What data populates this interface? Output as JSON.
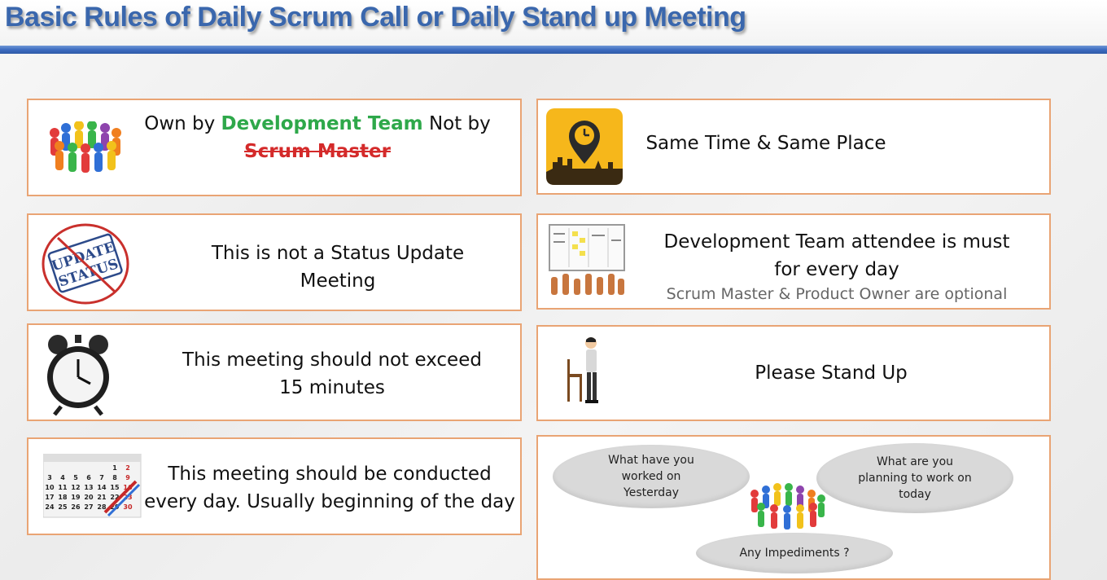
{
  "title": "Basic Rules of Daily Scrum Call or Daily Stand up Meeting",
  "cards": {
    "owner": {
      "prefix": "Own by ",
      "team": "Development Team",
      "suffix": " Not by",
      "struck": "Scrum Master"
    },
    "status": {
      "line1": "This is not a Status Update",
      "line2": "Meeting",
      "stamp_line1": "UPDATE",
      "stamp_line2": "STATUS"
    },
    "timebox": {
      "line1": "This meeting should not exceed",
      "line2": "15 minutes"
    },
    "daily": {
      "line1": "This meeting should be conducted",
      "line2": "every day. Usually beginning of the day"
    },
    "same_place": {
      "text": "Same Time & Same Place"
    },
    "attendee": {
      "line1": "Development Team attendee is must",
      "line2": "for every day",
      "note": "Scrum Master & Product Owner are optional"
    },
    "stand_up": {
      "text": "Please Stand Up"
    },
    "questions": {
      "yesterday": "What have you worked on Yesterday",
      "today": "What are you planning to work on today",
      "impediments": "Any Impediments ?"
    }
  },
  "calendar": {
    "rows": [
      [
        "",
        "",
        "",
        "",
        "",
        "1",
        "2"
      ],
      [
        "3",
        "4",
        "5",
        "6",
        "7",
        "8",
        "9"
      ],
      [
        "10",
        "11",
        "12",
        "13",
        "14",
        "15",
        "16"
      ],
      [
        "17",
        "18",
        "19",
        "20",
        "21",
        "22",
        "23"
      ],
      [
        "24",
        "25",
        "26",
        "27",
        "28",
        "29",
        "30"
      ]
    ]
  },
  "colors": {
    "title": "#3a67ad",
    "rule": "#3d6cc0",
    "card_border": "#e9a474",
    "green": "#2ea84a",
    "red": "#d42a2a"
  },
  "icons": [
    "team-circle-icon",
    "update-status-stamp-icon",
    "alarm-clock-icon",
    "calendar-icon",
    "map-pin-clock-icon",
    "kanban-board-icon",
    "standing-person-icon",
    "team-huddle-icon"
  ]
}
